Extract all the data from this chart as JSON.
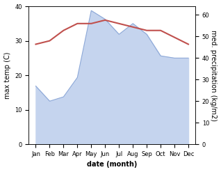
{
  "months": [
    "Jan",
    "Feb",
    "Mar",
    "Apr",
    "May",
    "Jun",
    "Jul",
    "Aug",
    "Sep",
    "Oct",
    "Nov",
    "Dec"
  ],
  "month_positions": [
    0,
    1,
    2,
    3,
    4,
    5,
    6,
    7,
    8,
    9,
    10,
    11
  ],
  "temperature": [
    29,
    30,
    33,
    35,
    35,
    36,
    35,
    34,
    33,
    33,
    31,
    29
  ],
  "precipitation": [
    27,
    20,
    22,
    31,
    62,
    58,
    51,
    56,
    51,
    41,
    40,
    40
  ],
  "temp_color": "#c0504d",
  "precip_color": "#8ea9d8",
  "precip_fill_color": "#c5d4ee",
  "temp_ylim": [
    0,
    40
  ],
  "precip_ylim": [
    0,
    64
  ],
  "temp_yticks": [
    0,
    10,
    20,
    30,
    40
  ],
  "precip_yticks": [
    0,
    10,
    20,
    30,
    40,
    50,
    60
  ],
  "xlabel": "date (month)",
  "ylabel_left": "max temp (C)",
  "ylabel_right": "med. precipitation (kg/m2)",
  "bg_color": "#ffffff",
  "plot_bg_color": "#ffffff"
}
